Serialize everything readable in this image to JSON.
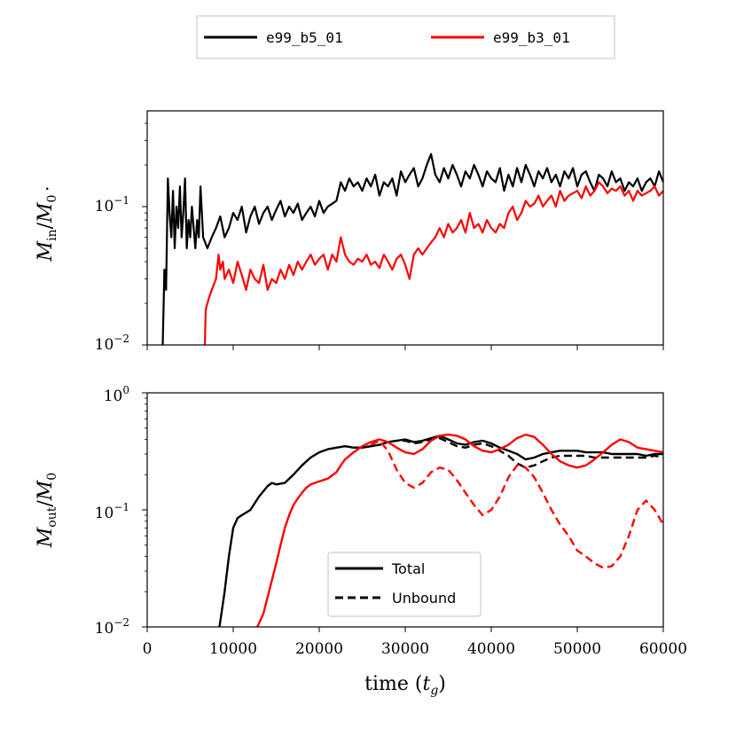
{
  "chart_data": [
    {
      "type": "line",
      "panel": "top",
      "ylabel_base": "M",
      "ylabel_sub": "in",
      "ylabel_sep": "/",
      "ylabel_base2": "M",
      "ylabel_sub2": "0",
      "yscale": "log",
      "ylim": [
        0.01,
        0.5
      ],
      "xlim": [
        0,
        60000
      ],
      "yticks": [
        {
          "base": "10",
          "exp": "−1"
        },
        {
          "base": "10",
          "exp": "−2"
        }
      ],
      "series": [
        {
          "name": "e99_b5_01",
          "color": "#000000",
          "x": [
            1800,
            2000,
            2200,
            2400,
            2600,
            2800,
            3000,
            3200,
            3400,
            3600,
            3800,
            4000,
            4200,
            4400,
            4600,
            4800,
            5000,
            5200,
            5400,
            5600,
            5800,
            6000,
            6200,
            6500,
            7000,
            7500,
            8000,
            8500,
            9000,
            9500,
            10000,
            10500,
            11000,
            11500,
            12000,
            12500,
            13000,
            13500,
            14000,
            14500,
            15000,
            15500,
            16000,
            16500,
            17000,
            17500,
            18000,
            18500,
            19000,
            19500,
            20000,
            20500,
            21000,
            21500,
            22000,
            22500,
            23000,
            23500,
            24000,
            24500,
            25000,
            25500,
            26000,
            26500,
            27000,
            27500,
            28000,
            28500,
            29000,
            29500,
            30000,
            30500,
            31000,
            31500,
            32000,
            32500,
            33000,
            33500,
            34000,
            34500,
            35000,
            35500,
            36000,
            36500,
            37000,
            37500,
            38000,
            38500,
            39000,
            39500,
            40000,
            40500,
            41000,
            41500,
            42000,
            42500,
            43000,
            43500,
            44000,
            44500,
            45000,
            45500,
            46000,
            46500,
            47000,
            47500,
            48000,
            48500,
            49000,
            49500,
            50000,
            50500,
            51000,
            51500,
            52000,
            52500,
            53000,
            53500,
            54000,
            54500,
            55000,
            55500,
            56000,
            56500,
            57000,
            57500,
            58000,
            58500,
            59000,
            59500,
            60000
          ],
          "values": [
            0.01,
            0.035,
            0.025,
            0.16,
            0.09,
            0.06,
            0.13,
            0.05,
            0.1,
            0.07,
            0.14,
            0.06,
            0.09,
            0.16,
            0.05,
            0.08,
            0.06,
            0.1,
            0.07,
            0.05,
            0.08,
            0.06,
            0.14,
            0.06,
            0.05,
            0.06,
            0.07,
            0.085,
            0.06,
            0.07,
            0.09,
            0.08,
            0.1,
            0.065,
            0.085,
            0.1,
            0.075,
            0.09,
            0.1,
            0.08,
            0.095,
            0.11,
            0.085,
            0.1,
            0.09,
            0.105,
            0.08,
            0.09,
            0.1,
            0.085,
            0.11,
            0.09,
            0.1,
            0.105,
            0.11,
            0.15,
            0.13,
            0.16,
            0.14,
            0.15,
            0.13,
            0.16,
            0.14,
            0.17,
            0.12,
            0.15,
            0.14,
            0.16,
            0.12,
            0.18,
            0.15,
            0.17,
            0.19,
            0.14,
            0.16,
            0.2,
            0.24,
            0.17,
            0.15,
            0.19,
            0.16,
            0.2,
            0.17,
            0.14,
            0.18,
            0.16,
            0.2,
            0.17,
            0.14,
            0.18,
            0.16,
            0.15,
            0.19,
            0.13,
            0.17,
            0.14,
            0.19,
            0.15,
            0.2,
            0.17,
            0.14,
            0.18,
            0.16,
            0.19,
            0.15,
            0.17,
            0.14,
            0.18,
            0.16,
            0.19,
            0.14,
            0.17,
            0.18,
            0.15,
            0.13,
            0.17,
            0.16,
            0.14,
            0.18,
            0.15,
            0.16,
            0.13,
            0.15,
            0.14,
            0.16,
            0.13,
            0.15,
            0.16,
            0.14,
            0.18,
            0.15
          ]
        },
        {
          "name": "e99_b3_01",
          "color": "#ff0000",
          "x": [
            6700,
            6800,
            7000,
            7200,
            7500,
            8000,
            8300,
            8500,
            8800,
            9000,
            9500,
            10000,
            10500,
            11000,
            11500,
            12000,
            12500,
            13000,
            13500,
            14000,
            14500,
            15000,
            15500,
            16000,
            16500,
            17000,
            17500,
            18000,
            18500,
            19000,
            19500,
            20000,
            20500,
            21000,
            21500,
            22000,
            22500,
            23000,
            23500,
            24000,
            24500,
            25000,
            25500,
            26000,
            26500,
            27000,
            27500,
            28000,
            28500,
            29000,
            29500,
            30000,
            30500,
            31000,
            31500,
            32000,
            32500,
            33000,
            33500,
            34000,
            34500,
            35000,
            35500,
            36000,
            36500,
            37000,
            37500,
            38000,
            38500,
            39000,
            39500,
            40000,
            40500,
            41000,
            41500,
            42000,
            42500,
            43000,
            43500,
            44000,
            44500,
            45000,
            45500,
            46000,
            46500,
            47000,
            47500,
            48000,
            48500,
            49000,
            49500,
            50000,
            50500,
            51000,
            51500,
            52000,
            52500,
            53000,
            53500,
            54000,
            54500,
            55000,
            55500,
            56000,
            56500,
            57000,
            57500,
            58000,
            58500,
            59000,
            59500,
            60000
          ],
          "values": [
            0.01,
            0.018,
            0.02,
            0.022,
            0.025,
            0.03,
            0.045,
            0.035,
            0.04,
            0.03,
            0.035,
            0.028,
            0.04,
            0.032,
            0.025,
            0.035,
            0.03,
            0.028,
            0.038,
            0.025,
            0.03,
            0.028,
            0.035,
            0.03,
            0.038,
            0.032,
            0.04,
            0.035,
            0.04,
            0.045,
            0.038,
            0.042,
            0.045,
            0.035,
            0.045,
            0.04,
            0.06,
            0.045,
            0.04,
            0.038,
            0.042,
            0.04,
            0.045,
            0.038,
            0.04,
            0.036,
            0.045,
            0.04,
            0.035,
            0.042,
            0.045,
            0.038,
            0.03,
            0.045,
            0.05,
            0.045,
            0.05,
            0.055,
            0.06,
            0.07,
            0.06,
            0.075,
            0.065,
            0.07,
            0.08,
            0.065,
            0.09,
            0.07,
            0.075,
            0.065,
            0.08,
            0.07,
            0.065,
            0.075,
            0.07,
            0.09,
            0.1,
            0.08,
            0.09,
            0.11,
            0.1,
            0.105,
            0.12,
            0.1,
            0.11,
            0.12,
            0.1,
            0.13,
            0.11,
            0.12,
            0.125,
            0.13,
            0.115,
            0.14,
            0.12,
            0.13,
            0.15,
            0.14,
            0.125,
            0.135,
            0.13,
            0.14,
            0.12,
            0.13,
            0.11,
            0.13,
            0.12,
            0.125,
            0.13,
            0.14,
            0.12,
            0.13
          ]
        }
      ]
    },
    {
      "type": "line",
      "panel": "bottom",
      "ylabel_base": "M",
      "ylabel_sub": "out",
      "ylabel_sep": "/",
      "ylabel_base2": "M",
      "ylabel_sub2": "0",
      "yscale": "log",
      "ylim": [
        0.01,
        1
      ],
      "xlim": [
        0,
        60000
      ],
      "xlabel_text": "time (",
      "xlabel_var": "t",
      "xlabel_sub": "g",
      "xlabel_close": ")",
      "xticks": [
        "0",
        "10000",
        "20000",
        "30000",
        "40000",
        "50000",
        "60000"
      ],
      "yticks": [
        {
          "base": "10",
          "exp": "0"
        },
        {
          "base": "10",
          "exp": "−1"
        },
        {
          "base": "10",
          "exp": "−2"
        }
      ],
      "series": [
        {
          "name": "e99_b5_01 Total",
          "color": "#000000",
          "dash": false,
          "x": [
            8400,
            9000,
            9500,
            10000,
            10500,
            11000,
            12000,
            13000,
            14000,
            14500,
            15000,
            16000,
            17000,
            18000,
            19000,
            20000,
            21000,
            22000,
            23000,
            24000,
            25000,
            26000,
            27000,
            28000,
            29000,
            30000,
            31000,
            32000,
            33000,
            34000,
            35000,
            36000,
            37000,
            38000,
            39000,
            40000,
            41000,
            42000,
            43000,
            44000,
            45000,
            46000,
            47000,
            48000,
            49000,
            50000,
            51000,
            52000,
            53000,
            54000,
            55000,
            56000,
            57000,
            58000,
            59000,
            60000
          ],
          "values": [
            0.01,
            0.02,
            0.04,
            0.07,
            0.085,
            0.09,
            0.1,
            0.13,
            0.16,
            0.17,
            0.165,
            0.17,
            0.2,
            0.24,
            0.28,
            0.31,
            0.33,
            0.34,
            0.35,
            0.34,
            0.34,
            0.35,
            0.36,
            0.38,
            0.39,
            0.4,
            0.38,
            0.39,
            0.41,
            0.43,
            0.4,
            0.37,
            0.36,
            0.38,
            0.39,
            0.37,
            0.34,
            0.32,
            0.3,
            0.27,
            0.28,
            0.3,
            0.31,
            0.32,
            0.32,
            0.32,
            0.31,
            0.31,
            0.31,
            0.3,
            0.3,
            0.3,
            0.3,
            0.29,
            0.3,
            0.3
          ]
        },
        {
          "name": "e99_b5_01 Unbound",
          "color": "#000000",
          "dash": true,
          "x": [
            24000,
            25000,
            26000,
            27000,
            28000,
            29000,
            30000,
            31000,
            32000,
            33000,
            34000,
            35000,
            36000,
            37000,
            38000,
            39000,
            40000,
            41000,
            42000,
            43000,
            44000,
            45000,
            46000,
            47000,
            48000,
            49000,
            50000,
            51000,
            52000,
            53000,
            54000,
            55000,
            56000,
            57000,
            58000,
            59000,
            60000
          ],
          "values": [
            0.34,
            0.34,
            0.35,
            0.36,
            0.38,
            0.39,
            0.39,
            0.37,
            0.38,
            0.4,
            0.41,
            0.38,
            0.35,
            0.34,
            0.36,
            0.37,
            0.35,
            0.32,
            0.29,
            0.25,
            0.23,
            0.24,
            0.26,
            0.28,
            0.29,
            0.29,
            0.29,
            0.29,
            0.28,
            0.28,
            0.28,
            0.28,
            0.28,
            0.28,
            0.28,
            0.29,
            0.28
          ]
        },
        {
          "name": "e99_b3_01 Total",
          "color": "#ff0000",
          "dash": false,
          "x": [
            12800,
            13500,
            14000,
            14500,
            15000,
            15500,
            16000,
            16500,
            17000,
            17500,
            18000,
            18500,
            19000,
            20000,
            21000,
            22000,
            22500,
            23000,
            24000,
            25000,
            26000,
            27000,
            28000,
            29000,
            30000,
            31000,
            32000,
            33000,
            34000,
            35000,
            36000,
            37000,
            38000,
            39000,
            40000,
            41000,
            42000,
            43000,
            44000,
            45000,
            46000,
            47000,
            48000,
            49000,
            50000,
            51000,
            52000,
            53000,
            54000,
            55000,
            56000,
            57000,
            58000,
            59000,
            60000
          ],
          "values": [
            0.01,
            0.013,
            0.018,
            0.025,
            0.035,
            0.05,
            0.07,
            0.09,
            0.11,
            0.125,
            0.14,
            0.155,
            0.165,
            0.175,
            0.185,
            0.21,
            0.24,
            0.27,
            0.31,
            0.35,
            0.38,
            0.4,
            0.38,
            0.34,
            0.31,
            0.3,
            0.33,
            0.39,
            0.43,
            0.44,
            0.43,
            0.4,
            0.35,
            0.32,
            0.31,
            0.33,
            0.36,
            0.41,
            0.44,
            0.42,
            0.36,
            0.3,
            0.26,
            0.24,
            0.23,
            0.24,
            0.27,
            0.31,
            0.36,
            0.4,
            0.38,
            0.34,
            0.33,
            0.32,
            0.31
          ]
        },
        {
          "name": "e99_b3_01 Unbound",
          "color": "#ff0000",
          "dash": true,
          "x": [
            26000,
            27000,
            28000,
            29000,
            30000,
            31000,
            32000,
            33000,
            34000,
            35000,
            36000,
            37000,
            38000,
            39000,
            40000,
            41000,
            42000,
            43000,
            44000,
            45000,
            46000,
            47000,
            48000,
            49000,
            50000,
            51000,
            52000,
            53000,
            54000,
            55000,
            56000,
            57000,
            58000,
            59000,
            60000
          ],
          "values": [
            0.36,
            0.39,
            0.32,
            0.22,
            0.17,
            0.155,
            0.17,
            0.21,
            0.23,
            0.22,
            0.18,
            0.14,
            0.11,
            0.09,
            0.1,
            0.13,
            0.19,
            0.24,
            0.23,
            0.19,
            0.14,
            0.1,
            0.075,
            0.06,
            0.045,
            0.04,
            0.035,
            0.032,
            0.033,
            0.04,
            0.06,
            0.1,
            0.12,
            0.1,
            0.075
          ]
        }
      ]
    }
  ],
  "legend_top": [
    {
      "label": "e99_b5_01",
      "color": "#000000"
    },
    {
      "label": "e99_b3_01",
      "color": "#ff0000"
    }
  ],
  "legend_bottom": [
    {
      "label": "Total",
      "dash": false
    },
    {
      "label": "Unbound",
      "dash": true
    }
  ],
  "colors": {
    "black": "#000000",
    "red": "#ff0000"
  }
}
